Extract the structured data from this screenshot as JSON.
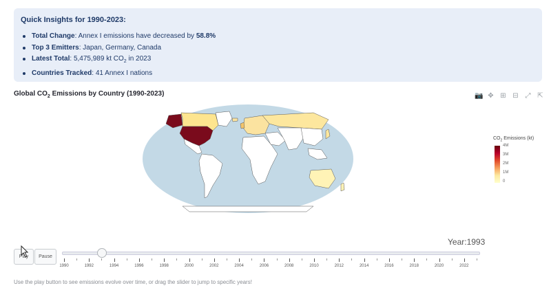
{
  "insights": {
    "title": "Quick Insights for 1990-2023:",
    "items": [
      {
        "label": "Total Change",
        "text_before": ": Annex I emissions have decreased by ",
        "value": "58.8%",
        "text_after": ""
      },
      {
        "label": "Top 3 Emitters",
        "text_before": ": Japan, Germany, Canada",
        "value": "",
        "text_after": ""
      },
      {
        "label": "Latest Total",
        "text_before": ": 5,475,989 kt CO",
        "value": "",
        "text_after": " in 2023"
      },
      {
        "label": "Countries Tracked",
        "text_before": ": 41 Annex I nations",
        "value": "",
        "text_after": ""
      }
    ]
  },
  "chart": {
    "title_prefix": "Global CO",
    "title_suffix": " Emissions by Country (1990-2023)",
    "subscript": "2"
  },
  "modebar": {
    "icons": [
      "camera-icon",
      "pan-icon",
      "zoom-in-icon",
      "zoom-out-icon",
      "autoscale-icon",
      "fullscreen-icon"
    ]
  },
  "colorbar": {
    "title_prefix": "CO",
    "title_suffix": " Emissions (kt)",
    "subscript": "2",
    "ticks": [
      "4M",
      "3M",
      "2M",
      "1M",
      "0"
    ],
    "colors": [
      "#67000d",
      "#e14b2b",
      "#ffffcc"
    ]
  },
  "controls": {
    "play_label": "Play",
    "pause_label": "Pause",
    "year_label": "Year:1993"
  },
  "slider": {
    "min": 1990,
    "max": 2023,
    "value": 1993,
    "tick_labels": [
      "1990",
      "1992",
      "1994",
      "1996",
      "1998",
      "2000",
      "2002",
      "2004",
      "2006",
      "2008",
      "2010",
      "2012",
      "2014",
      "2016",
      "2018",
      "2020",
      "2022"
    ]
  },
  "footer": {
    "text": "Use the play button to see emissions evolve over time, or drag the slider to jump to specific years!"
  },
  "map": {
    "ocean_color": "#c3d9e6",
    "land_default": "#ffffff",
    "usa_color": "#7a0b1c",
    "canada_color": "#fde58f",
    "europe_color": "#fbe3a0",
    "russia_color": "#fde79e",
    "australia_color": "#fff3b6"
  }
}
